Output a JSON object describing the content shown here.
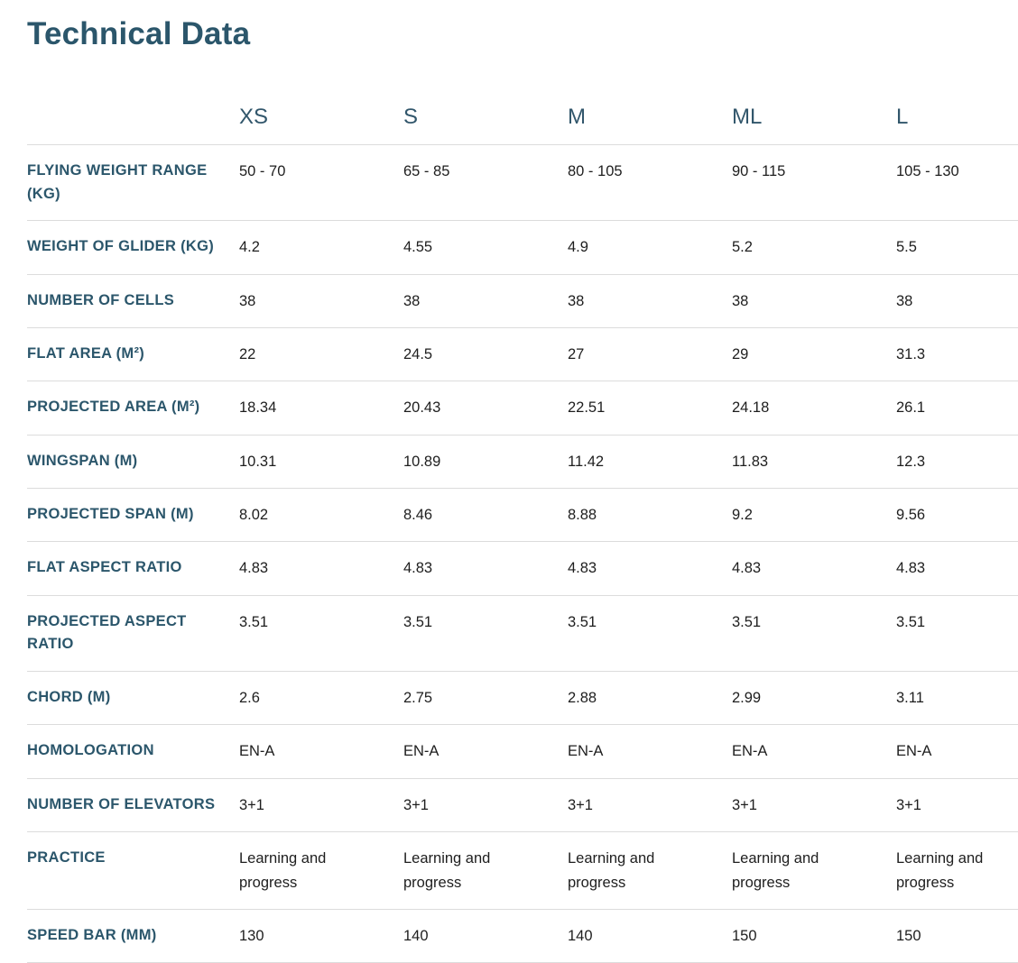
{
  "page": {
    "title": "Technical Data"
  },
  "colors": {
    "heading_text": "#2b566b",
    "value_text": "#1e1e1e",
    "divider": "#dcdcdc",
    "background": "#ffffff"
  },
  "table": {
    "columns": [
      "XS",
      "S",
      "M",
      "ML",
      "L"
    ],
    "rows": [
      {
        "label": "FLYING WEIGHT RANGE (KG)",
        "values": [
          "50 - 70",
          "65 - 85",
          "80 - 105",
          "90 - 115",
          "105 - 130"
        ]
      },
      {
        "label": "WEIGHT OF GLIDER (KG)",
        "values": [
          "4.2",
          "4.55",
          "4.9",
          "5.2",
          "5.5"
        ]
      },
      {
        "label": "NUMBER OF CELLS",
        "values": [
          "38",
          "38",
          "38",
          "38",
          "38"
        ]
      },
      {
        "label": "FLAT AREA (M²)",
        "values": [
          "22",
          "24.5",
          "27",
          "29",
          "31.3"
        ]
      },
      {
        "label": "PROJECTED AREA (M²)",
        "values": [
          "18.34",
          "20.43",
          "22.51",
          "24.18",
          "26.1"
        ]
      },
      {
        "label": "WINGSPAN (M)",
        "values": [
          "10.31",
          "10.89",
          "11.42",
          "11.83",
          "12.3"
        ]
      },
      {
        "label": "PROJECTED SPAN (M)",
        "values": [
          "8.02",
          "8.46",
          "8.88",
          "9.2",
          "9.56"
        ]
      },
      {
        "label": "FLAT ASPECT RATIO",
        "values": [
          "4.83",
          "4.83",
          "4.83",
          "4.83",
          "4.83"
        ]
      },
      {
        "label": "PROJECTED ASPECT RATIO",
        "values": [
          "3.51",
          "3.51",
          "3.51",
          "3.51",
          "3.51"
        ]
      },
      {
        "label": "CHORD (M)",
        "values": [
          "2.6",
          "2.75",
          "2.88",
          "2.99",
          "3.11"
        ]
      },
      {
        "label": "HOMOLOGATION",
        "values": [
          "EN-A",
          "EN-A",
          "EN-A",
          "EN-A",
          "EN-A"
        ]
      },
      {
        "label": "NUMBER OF ELEVATORS",
        "values": [
          "3+1",
          "3+1",
          "3+1",
          "3+1",
          "3+1"
        ]
      },
      {
        "label": "PRACTICE",
        "values": [
          "Learning and progress",
          "Learning and progress",
          "Learning and progress",
          "Learning and progress",
          "Learning and progress"
        ]
      },
      {
        "label": "SPEED BAR (MM)",
        "values": [
          "130",
          "140",
          "140",
          "150",
          "150"
        ]
      }
    ]
  }
}
